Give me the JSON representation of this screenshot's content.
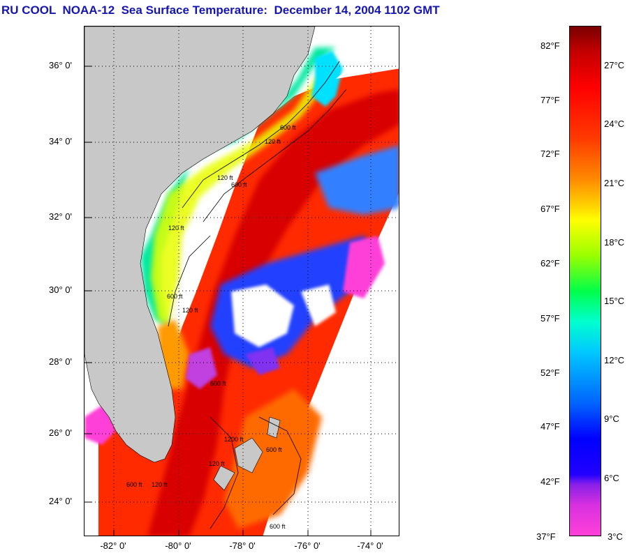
{
  "title": "RU COOL  NOAA-12  Sea Surface Temperature:  December 14, 2004 1102 GMT",
  "latitude_labels": [
    "36° 0'",
    "34° 0'",
    "32° 0'",
    "30° 0'",
    "28° 0'",
    "26° 0'",
    "24° 0'"
  ],
  "longitude_labels": [
    "-82° 0'",
    "-80° 0'",
    "-78° 0'",
    "-76° 0'",
    "-74° 0'"
  ],
  "depth_contour_labels": [
    "120 ft",
    "600 ft",
    "120 ft",
    "600 ft",
    "120 ft",
    "600 ft",
    "120 ft",
    "600 ft",
    "120 ft",
    "600 ft",
    "1200 ft",
    "120 ft",
    "600 ft",
    "600 ft"
  ],
  "colorbar": {
    "fahrenheit_labels": [
      "82°F",
      "77°F",
      "72°F",
      "67°F",
      "62°F",
      "57°F",
      "52°F",
      "47°F",
      "42°F",
      "37°F"
    ],
    "celsius_labels": [
      "27°C",
      "24°C",
      "21°C",
      "18°C",
      "15°C",
      "12°C",
      "9°C",
      "6°C",
      "3°C"
    ],
    "colors": {
      "top": "#7a0000",
      "red": "#ff0000",
      "orange": "#ff8a00",
      "yellow": "#ffff00",
      "green": "#00ff4a",
      "cyan": "#00ffcf",
      "blue": "#0000ff",
      "magenta": "#ff40d8"
    }
  },
  "land_color": "#c8c8c8",
  "no_data_color": "#ffffff"
}
